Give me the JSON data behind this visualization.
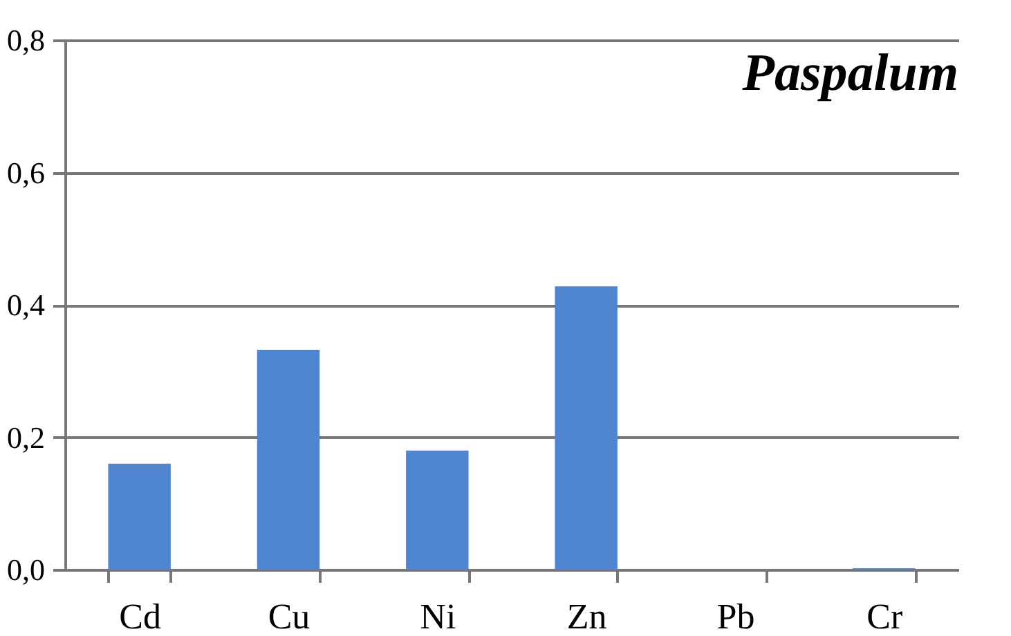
{
  "chart_data": {
    "type": "bar",
    "title": "Paspalum",
    "categories": [
      "Cd",
      "Cu",
      "Ni",
      "Zn",
      "Pb",
      "Cr"
    ],
    "values": [
      0.16,
      0.332,
      0.18,
      0.428,
      0,
      0.002
    ],
    "color": "#4f85d0",
    "ylim": [
      0,
      0.8
    ],
    "yticks": [
      {
        "value": 0,
        "label": "0,0"
      },
      {
        "value": 0.2,
        "label": "0,2"
      },
      {
        "value": 0.4,
        "label": "0,4"
      },
      {
        "value": 0.6,
        "label": "0,6"
      },
      {
        "value": 0.8,
        "label": "0,8"
      }
    ],
    "grid": "y"
  }
}
